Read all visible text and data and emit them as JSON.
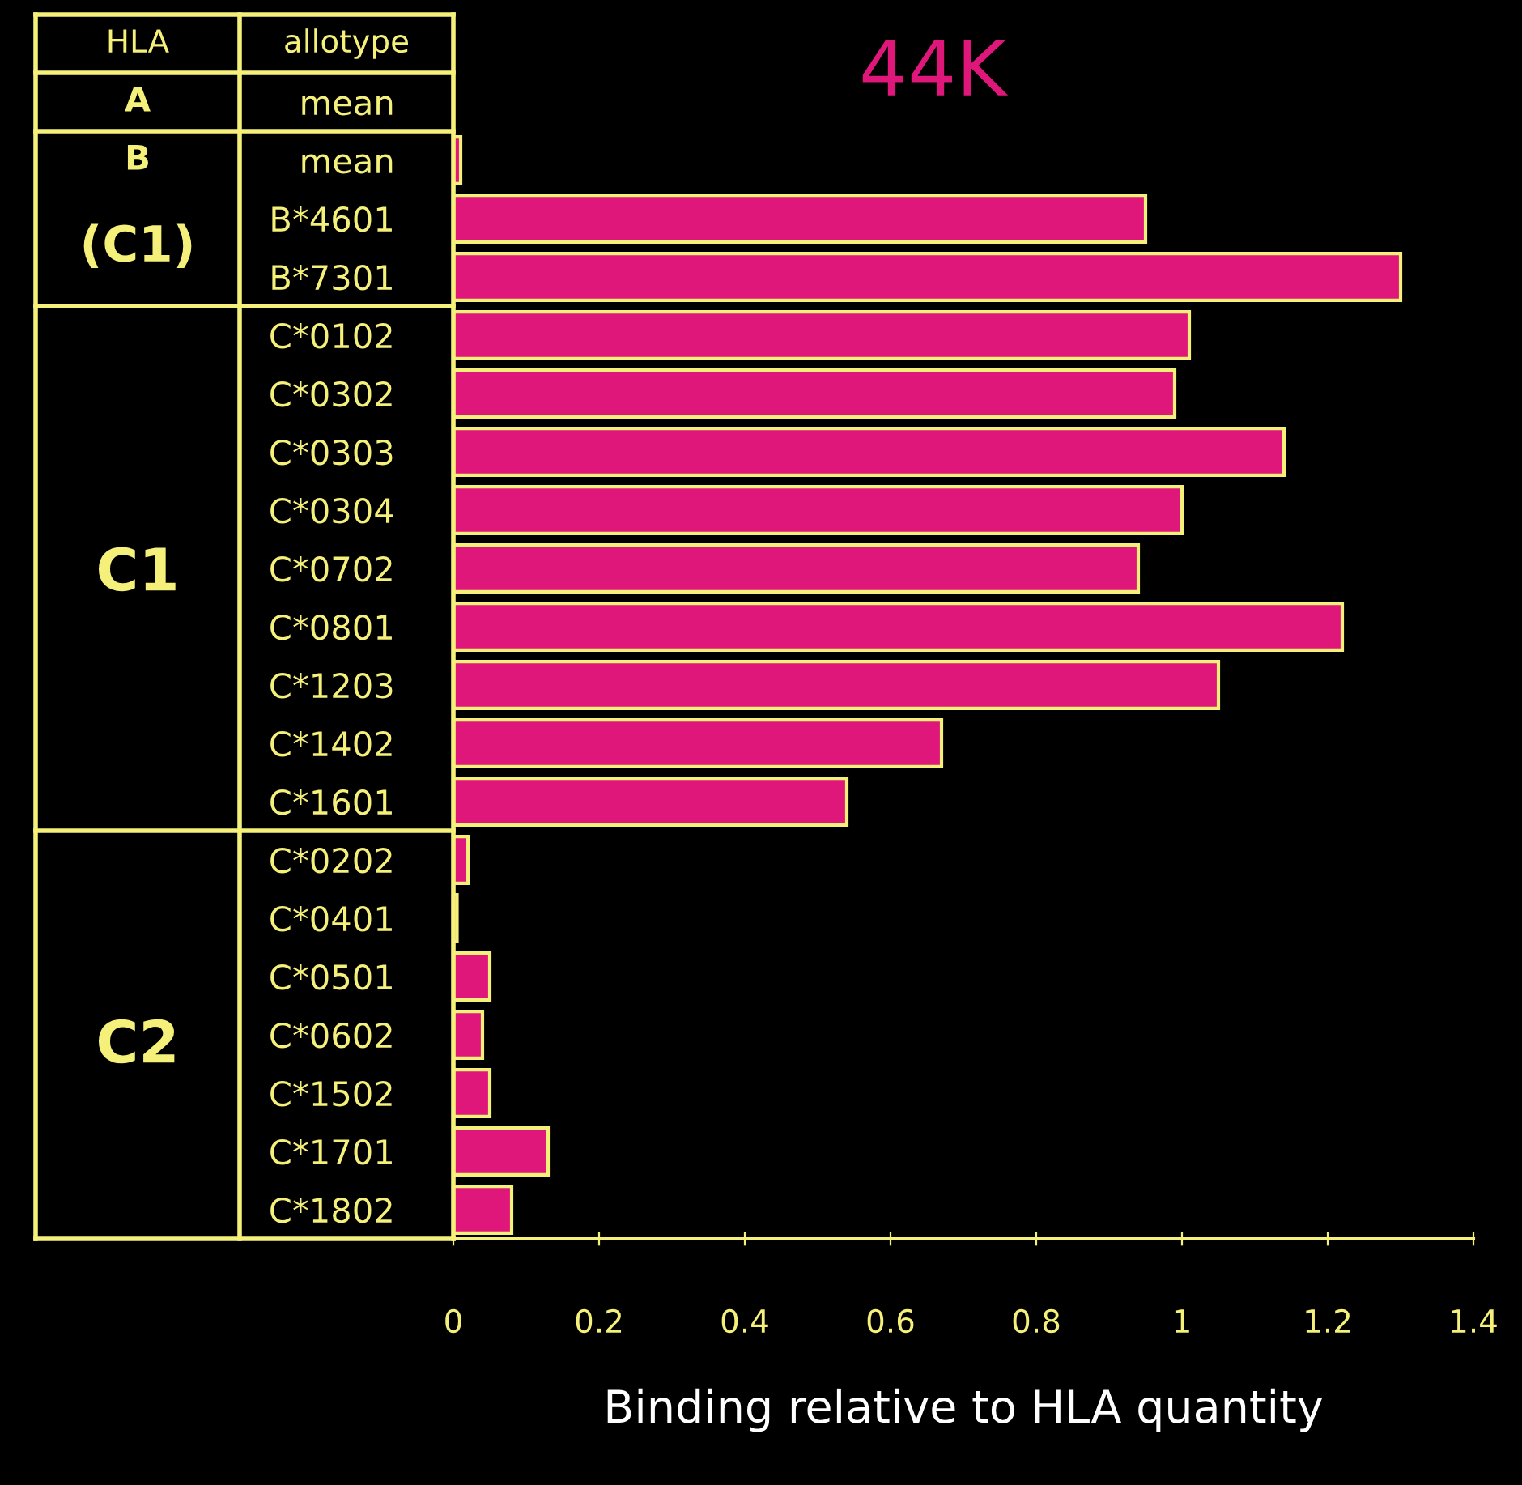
{
  "chart_data": {
    "type": "bar",
    "orientation": "horizontal",
    "title": "44K",
    "xlabel": "Binding relative to HLA quantity",
    "categories": [
      "mean",
      "mean",
      "B*4601",
      "B*7301",
      "C*0102",
      "C*0302",
      "C*0303",
      "C*0304",
      "C*0702",
      "C*0801",
      "C*1203",
      "C*1402",
      "C*1601",
      "C*0202",
      "C*0401",
      "C*0501",
      "C*0602",
      "C*1502",
      "C*1701",
      "C*1802"
    ],
    "values": [
      null,
      0.01,
      0.95,
      1.3,
      1.01,
      0.99,
      1.14,
      1.0,
      0.94,
      1.22,
      1.05,
      0.67,
      0.54,
      0.02,
      0.005,
      0.05,
      0.04,
      0.05,
      0.13,
      0.08
    ],
    "color": "#e0177a",
    "xlim": [
      0,
      1.4
    ],
    "xticks": [
      0,
      0.2,
      0.4,
      0.6,
      0.8,
      1,
      1.2,
      1.4
    ],
    "annotations": [
      "HLA",
      "allotype",
      "A",
      "B",
      "(C1)",
      "C1",
      "C2"
    ],
    "grid": false,
    "legend": false
  }
}
